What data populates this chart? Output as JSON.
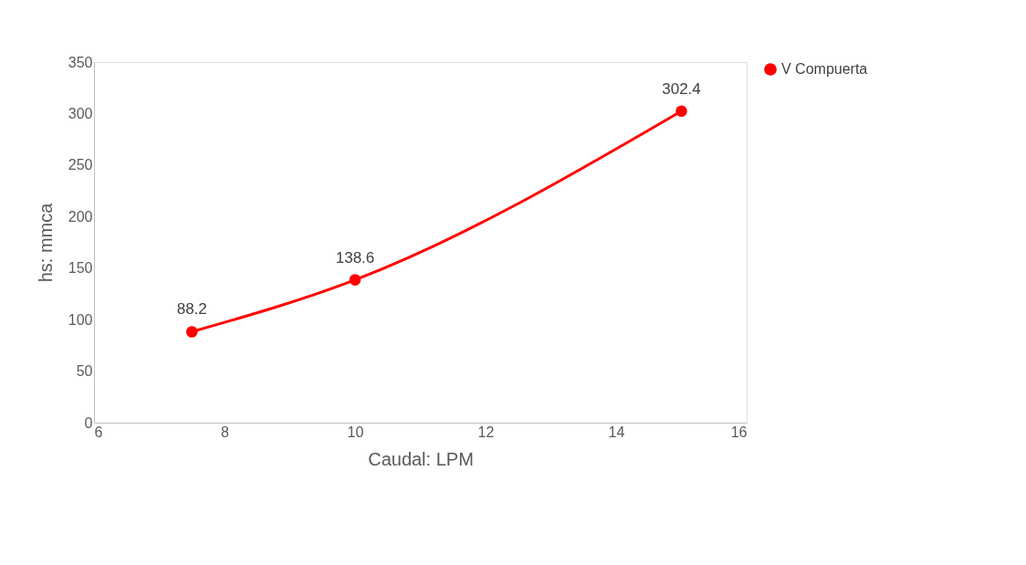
{
  "chart_data": {
    "type": "line",
    "xlabel": "Caudal: LPM",
    "ylabel": "hs: mmca",
    "x": [
      7.5,
      10,
      15
    ],
    "series": [
      {
        "name": "V Compuerta",
        "color": "#ff0000",
        "values": [
          88.2,
          138.6,
          302.4
        ]
      }
    ],
    "xlim": [
      6,
      16
    ],
    "xticks": [
      6,
      8,
      10,
      12,
      14,
      16
    ],
    "ylim": [
      0,
      350
    ],
    "yticks": [
      0,
      50,
      100,
      150,
      200,
      250,
      300,
      350
    ],
    "grid": false,
    "legend": "right",
    "marker": "circle",
    "line_style": "solid",
    "data_labels": true
  }
}
